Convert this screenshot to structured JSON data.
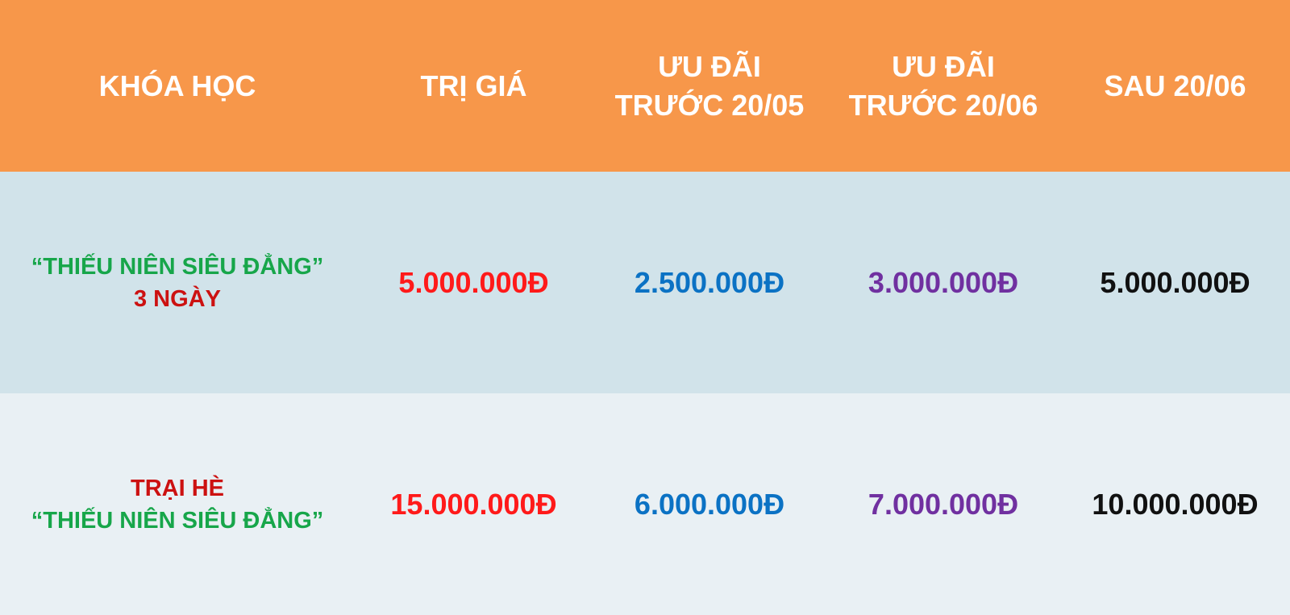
{
  "header": {
    "course": "KHÓA HỌC",
    "value": "TRỊ GIÁ",
    "offer_1_line1": "ƯU ĐÃI",
    "offer_1_line2": "TRƯỚC 20/05",
    "offer_2_line1": "ƯU ĐÃI",
    "offer_2_line2": "TRƯỚC 20/06",
    "after": "SAU 20/06"
  },
  "rows": [
    {
      "course_line1": "“THIẾU NIÊN SIÊU ĐẲNG”",
      "course_line2": "3 NGÀY",
      "value": "5.000.000Đ",
      "offer_1": "2.500.000Đ",
      "offer_2": "3.000.000Đ",
      "after": "5.000.000Đ"
    },
    {
      "course_line1": "TRẠI HÈ",
      "course_line2": "“THIẾU NIÊN SIÊU ĐẲNG”",
      "value": "15.000.000Đ",
      "offer_1": "6.000.000Đ",
      "offer_2": "7.000.000Đ",
      "after": "10.000.000Đ"
    }
  ],
  "colors": {
    "header_bg": "#f7974a",
    "header_text": "#ffffff",
    "row1_bg": "#d1e3ea",
    "row2_bg": "#e9f0f4",
    "course_green": "#17a64a",
    "course_red": "#cc1111",
    "value_red": "#ff1a1a",
    "offer1_blue": "#0b72c4",
    "offer2_purple": "#7030a0",
    "after_black": "#111111"
  }
}
